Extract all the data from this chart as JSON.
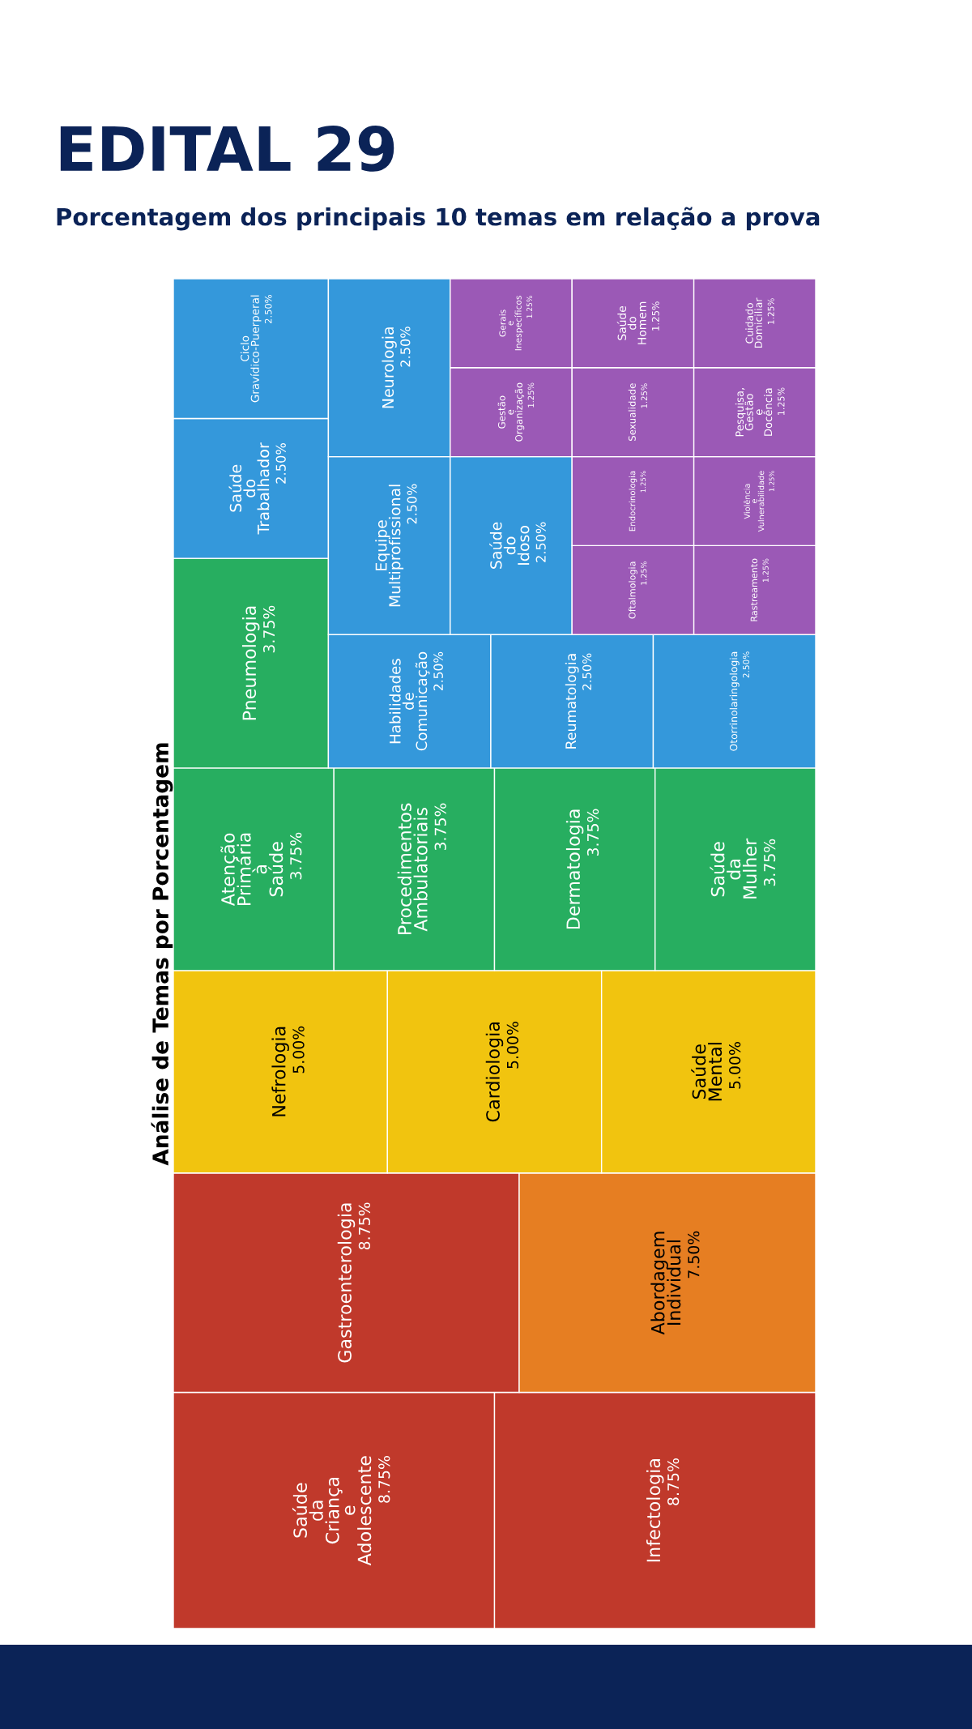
{
  "chart_data": {
    "type": "other",
    "title": "EDITAL 29",
    "subtitle": "Porcentagem dos principais 10 temas em relação a prova",
    "ylabel": "Análise de Temas por Porcentagem",
    "categories": [
      "Saúde\nda\nCriança\ne\nAdolescente",
      "Infectologia",
      "Gastroenterologia",
      "Abordagem\nIndividual",
      "Nefrologia",
      "Cardiologia",
      "Saúde\nMental",
      "Atenção\nPrimária\nà\nSaúde",
      "Procedimentos\nAmbulatoriais",
      "Dermatologia",
      "Saúde\nda\nMulher",
      "Pneumologia",
      "Saúde\ndo\nTrabalhador",
      "Ciclo\nGravídico-Puerperal",
      "Habilidades\nde\nComunicação",
      "Reumatologia",
      "Otorrinolaringologia",
      "Equipe\nMultiprofissional",
      "Neurologia",
      "Saúde\ndo\nIdoso",
      "Gestão\ne\nOrganização",
      "Gerais\ne\nInespecíficos",
      "Oftalmologia",
      "Rastreamento",
      "Endocrinologia",
      "Violência\ne\nVulnerabilidade",
      "Sexualidade",
      "Saúde\ndo\nHomem",
      "Pesquisa,\nGestão\ne\nDocência",
      "Cuidado\nDomiciliar"
    ],
    "values": [
      8.75,
      8.75,
      8.75,
      7.5,
      5,
      5,
      5,
      3.75,
      3.75,
      3.75,
      3.75,
      3.75,
      2.5,
      2.5,
      2.5,
      2.5,
      2.5,
      2.5,
      2.5,
      2.5,
      1.25,
      1.25,
      1.25,
      1.25,
      1.25,
      1.25,
      1.25,
      1.25,
      1.25,
      1.25
    ],
    "value_labels": [
      "8.75%",
      "8.75%",
      "8.75%",
      "7.50%",
      "5.00%",
      "5.00%",
      "5.00%",
      "3.75%",
      "3.75%",
      "3.75%",
      "3.75%",
      "3.75%",
      "2.50%",
      "2.50%",
      "2.50%",
      "2.50%",
      "2.50%",
      "2.50%",
      "2.50%",
      "2.50%",
      "1.25%",
      "1.25%",
      "1.25%",
      "1.25%",
      "1.25%",
      "1.25%",
      "1.25%",
      "1.25%",
      "1.25%",
      "1.25%"
    ],
    "colors": [
      "#c0392b",
      "#c0392b",
      "#c0392b",
      "#e67e22",
      "#f1c40f",
      "#f1c40f",
      "#f1c40f",
      "#27ae60",
      "#27ae60",
      "#27ae60",
      "#27ae60",
      "#27ae60",
      "#3498db",
      "#3498db",
      "#3498db",
      "#3498db",
      "#3498db",
      "#3498db",
      "#3498db",
      "#3498db",
      "#9b59b6",
      "#9b59b6",
      "#9b59b6",
      "#9b59b6",
      "#9b59b6",
      "#9b59b6",
      "#9b59b6",
      "#9b59b6",
      "#9b59b6",
      "#9b59b6"
    ]
  }
}
